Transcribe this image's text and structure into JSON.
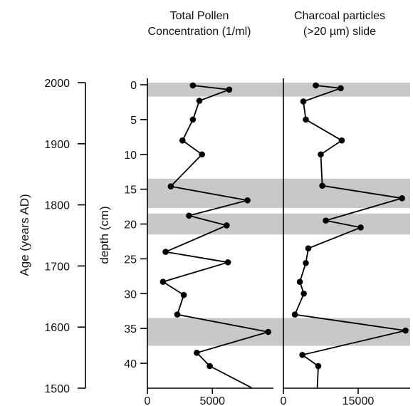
{
  "titles": {
    "pollen_line1": "Total Pollen",
    "pollen_line2": "Concentration (1/ml)",
    "charcoal_line1": "Charcoal particles",
    "charcoal_line2": "(>20 µm) slide"
  },
  "colors": {
    "band": "#c8c8c8",
    "line": "#000000",
    "marker": "#000000"
  },
  "chart_data": [
    {
      "type": "line",
      "name": "age-axis",
      "ylabel": "Age (years AD)",
      "y_ticks": [
        2000,
        1900,
        1800,
        1700,
        1600,
        1500
      ],
      "ylim": [
        1500,
        2000
      ],
      "inverted": true
    },
    {
      "type": "line",
      "name": "total-pollen",
      "title": "Total Pollen Concentration (1/ml)",
      "ylabel": "depth (cm)",
      "y_ticks": [
        0,
        5,
        10,
        15,
        20,
        25,
        30,
        35,
        40
      ],
      "ylim": [
        -0.8,
        43.5
      ],
      "x_ticks": [
        0,
        5000
      ],
      "xlim": [
        0,
        10000
      ],
      "bands_depth": [
        [
          -0.3,
          1.7
        ],
        [
          13.5,
          17.7
        ],
        [
          18.5,
          21.5
        ],
        [
          33.5,
          37.5
        ]
      ],
      "points": [
        {
          "depth": 0.1,
          "value": 3500
        },
        {
          "depth": 0.7,
          "value": 6300
        },
        {
          "depth": 2.3,
          "value": 4000
        },
        {
          "depth": 5.0,
          "value": 3500
        },
        {
          "depth": 8.0,
          "value": 2700
        },
        {
          "depth": 10.0,
          "value": 4200
        },
        {
          "depth": 14.6,
          "value": 1800
        },
        {
          "depth": 16.6,
          "value": 7700
        },
        {
          "depth": 18.8,
          "value": 3200
        },
        {
          "depth": 20.2,
          "value": 6100
        },
        {
          "depth": 24.0,
          "value": 1400
        },
        {
          "depth": 25.5,
          "value": 6200
        },
        {
          "depth": 28.3,
          "value": 1200
        },
        {
          "depth": 30.2,
          "value": 2800
        },
        {
          "depth": 33.0,
          "value": 2300
        },
        {
          "depth": 35.5,
          "value": 9300
        },
        {
          "depth": 38.5,
          "value": 3800
        },
        {
          "depth": 40.4,
          "value": 4800
        }
      ],
      "trail_end": {
        "depth": 43.5,
        "value": 8000
      }
    },
    {
      "type": "line",
      "name": "charcoal-particles",
      "title": "Charcoal particles (>20 µm) slide",
      "x_ticks": [
        0,
        15000
      ],
      "xlim": [
        0,
        25000
      ],
      "points": [
        {
          "depth": 0.1,
          "value": 6500
        },
        {
          "depth": 0.5,
          "value": 11500
        },
        {
          "depth": 2.4,
          "value": 4000
        },
        {
          "depth": 5.0,
          "value": 4500
        },
        {
          "depth": 8.0,
          "value": 11700
        },
        {
          "depth": 10.0,
          "value": 7500
        },
        {
          "depth": 14.5,
          "value": 7800
        },
        {
          "depth": 16.3,
          "value": 23800
        },
        {
          "depth": 19.5,
          "value": 8500
        },
        {
          "depth": 20.5,
          "value": 15500
        },
        {
          "depth": 23.5,
          "value": 5000
        },
        {
          "depth": 25.6,
          "value": 4500
        },
        {
          "depth": 28.3,
          "value": 3300
        },
        {
          "depth": 30.0,
          "value": 4100
        },
        {
          "depth": 33.0,
          "value": 2300
        },
        {
          "depth": 35.3,
          "value": 24500
        },
        {
          "depth": 38.8,
          "value": 3800
        },
        {
          "depth": 40.4,
          "value": 7000
        }
      ],
      "trail_end": {
        "depth": 43.5,
        "value": 6800
      }
    }
  ]
}
